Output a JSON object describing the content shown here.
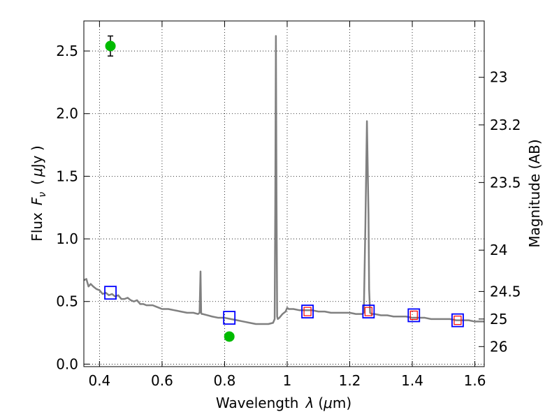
{
  "chart_data": {
    "type": "line",
    "xlabel": "Wavelength",
    "xlabel_symbol": "λ",
    "xlabel_unit_open": "(",
    "xlabel_unit_mu": "μ",
    "xlabel_unit_rest": "m)",
    "ylabel_prefix": "Flux",
    "ylabel_symbol": "F",
    "ylabel_sub": "ν",
    "ylabel_unit_open": "(",
    "ylabel_unit_mu": "μ",
    "ylabel_unit_rest": "Jy )",
    "y2label": "Magnitude (AB)",
    "xlim": [
      0.35,
      1.63
    ],
    "ylim": [
      -0.02,
      2.74
    ],
    "grid": true,
    "grid_style": "dotted",
    "x_ticks": [
      0.4,
      0.6,
      0.8,
      1.0,
      1.2,
      1.4,
      1.6
    ],
    "x_tick_labels": [
      "0.4",
      "0.6",
      "0.8",
      "1",
      "1.2",
      "1.4",
      "1.6"
    ],
    "y_ticks": [
      0.0,
      0.5,
      1.0,
      1.5,
      2.0,
      2.5
    ],
    "y_tick_labels": [
      "0.0",
      "0.5",
      "1.0",
      "1.5",
      "2.0",
      "2.5"
    ],
    "y2_ticks": [
      {
        "label": "23",
        "flux": 2.29
      },
      {
        "label": "23.2",
        "flux": 1.91
      },
      {
        "label": "23.5",
        "flux": 1.45
      },
      {
        "label": "24",
        "flux": 0.91
      },
      {
        "label": "24.5",
        "flux": 0.58
      },
      {
        "label": "25",
        "flux": 0.36
      },
      {
        "label": "26",
        "flux": 0.14
      }
    ],
    "series": [
      {
        "kind": "model_spectrum",
        "color": "#808080",
        "x": [
          0.35,
          0.358,
          0.365,
          0.372,
          0.38,
          0.39,
          0.4,
          0.41,
          0.42,
          0.43,
          0.44,
          0.45,
          0.46,
          0.47,
          0.48,
          0.49,
          0.5,
          0.51,
          0.52,
          0.53,
          0.54,
          0.55,
          0.56,
          0.57,
          0.58,
          0.59,
          0.6,
          0.62,
          0.64,
          0.66,
          0.68,
          0.7,
          0.715,
          0.72,
          0.723,
          0.725,
          0.727,
          0.73,
          0.745,
          0.76,
          0.78,
          0.8,
          0.82,
          0.84,
          0.86,
          0.88,
          0.9,
          0.92,
          0.94,
          0.955,
          0.96,
          0.962,
          0.964,
          0.966,
          0.968,
          0.97,
          0.975,
          0.985,
          0.995,
          1.0,
          1.005,
          1.02,
          1.04,
          1.06,
          1.08,
          1.1,
          1.12,
          1.14,
          1.16,
          1.18,
          1.2,
          1.22,
          1.24,
          1.245,
          1.25,
          1.255,
          1.26,
          1.262,
          1.265,
          1.27,
          1.275,
          1.28,
          1.3,
          1.32,
          1.34,
          1.36,
          1.38,
          1.4,
          1.42,
          1.44,
          1.46,
          1.48,
          1.5,
          1.52,
          1.54,
          1.56,
          1.58,
          1.6,
          1.63
        ],
        "y": [
          0.67,
          0.68,
          0.62,
          0.64,
          0.62,
          0.6,
          0.59,
          0.56,
          0.57,
          0.55,
          0.56,
          0.54,
          0.55,
          0.52,
          0.52,
          0.53,
          0.51,
          0.5,
          0.51,
          0.48,
          0.48,
          0.47,
          0.47,
          0.47,
          0.46,
          0.45,
          0.44,
          0.44,
          0.43,
          0.42,
          0.41,
          0.41,
          0.4,
          0.41,
          0.74,
          0.41,
          0.4,
          0.4,
          0.39,
          0.38,
          0.37,
          0.37,
          0.36,
          0.35,
          0.34,
          0.33,
          0.32,
          0.32,
          0.32,
          0.33,
          0.36,
          1.3,
          2.62,
          1.3,
          0.38,
          0.36,
          0.37,
          0.4,
          0.42,
          0.45,
          0.44,
          0.44,
          0.43,
          0.43,
          0.43,
          0.42,
          0.42,
          0.41,
          0.41,
          0.41,
          0.41,
          0.4,
          0.4,
          0.41,
          1.1,
          1.94,
          1.2,
          0.6,
          0.41,
          0.4,
          0.4,
          0.4,
          0.39,
          0.39,
          0.38,
          0.38,
          0.38,
          0.37,
          0.37,
          0.37,
          0.36,
          0.36,
          0.36,
          0.36,
          0.35,
          0.35,
          0.35,
          0.34,
          0.34
        ]
      },
      {
        "kind": "model_photometry",
        "marker": "square",
        "color": "#0000ff",
        "x": [
          0.435,
          0.815,
          1.065,
          1.26,
          1.405,
          1.545
        ],
        "y": [
          0.57,
          0.37,
          0.42,
          0.42,
          0.39,
          0.35
        ]
      },
      {
        "kind": "model_photometry_inner",
        "marker": "square",
        "color": "#ff0000",
        "x": [
          1.065,
          1.26,
          1.405,
          1.545
        ],
        "y": [
          0.42,
          0.42,
          0.39,
          0.35
        ]
      },
      {
        "kind": "observed_photometry",
        "marker": "circle",
        "color": "#00bb00",
        "x": [
          0.435,
          0.815
        ],
        "y": [
          2.54,
          0.22
        ],
        "yerr": [
          0.08,
          0.02
        ]
      }
    ]
  }
}
